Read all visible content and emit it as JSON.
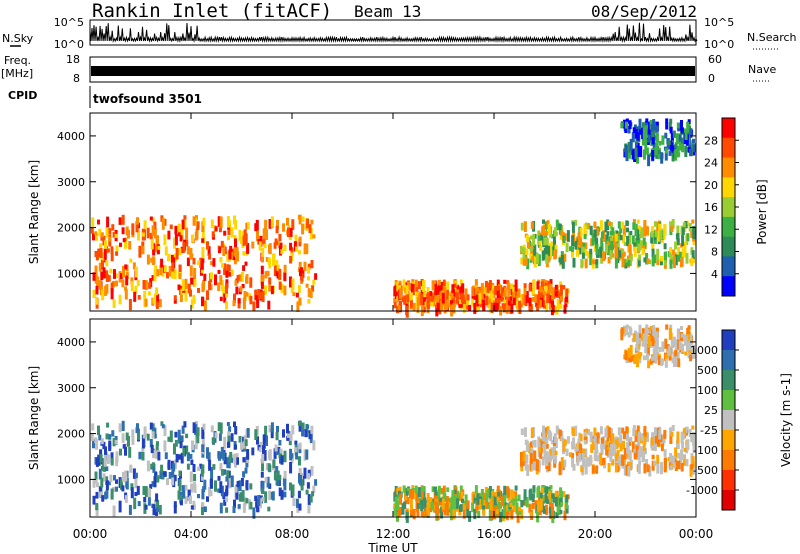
{
  "header": {
    "station": "Rankin Inlet (fitACF)",
    "beam": "Beam 13",
    "date": "08/Sep/2012"
  },
  "strip": {
    "nsky_label": "N.Sky",
    "nsky_ticks": [
      "10^5",
      "10^0"
    ],
    "nsearch_label": "N.Search",
    "nsearch_ticks": [
      "10^5",
      "10^0"
    ],
    "freq_label": "Freq.",
    "freq_unit": "[MHz]",
    "freq_ticks": [
      "18",
      "8"
    ],
    "nave_label": "Nave",
    "nave_ticks": [
      "60",
      "0"
    ],
    "cpid_label": "CPID",
    "cpid_value": "twofsound 3501"
  },
  "chart_data": [
    {
      "type": "heatmap",
      "panel": "power",
      "ylabel": "Slant Range [km]",
      "ylim": [
        180,
        4500
      ],
      "yticks": [
        "1000",
        "2000",
        "3000",
        "4000"
      ],
      "colorbar_label": "Power [dB]",
      "colorbar_ticks": [
        "28",
        "24",
        "20",
        "16",
        "12",
        "8",
        "4"
      ],
      "colorbar_colors": [
        "#ff0000",
        "#ff4a00",
        "#ff8c00",
        "#ffd700",
        "#9acd32",
        "#3cb043",
        "#2e8b57",
        "#1e5fb0",
        "#0000ff"
      ],
      "echo_bands": [
        {
          "t_start": "00:00",
          "t_end": "09:00",
          "range_min": 300,
          "range_max": 2200,
          "level": "high"
        },
        {
          "t_start": "12:00",
          "t_end": "19:00",
          "range_min": 200,
          "range_max": 800,
          "level": "high"
        },
        {
          "t_start": "17:00",
          "t_end": "24:00",
          "range_min": 1200,
          "range_max": 2100,
          "level": "medium"
        },
        {
          "t_start": "21:00",
          "t_end": "24:00",
          "range_min": 3500,
          "range_max": 4300,
          "level": "low"
        }
      ]
    },
    {
      "type": "heatmap",
      "panel": "velocity",
      "ylabel": "Slant Range [km]",
      "ylim": [
        180,
        4500
      ],
      "yticks": [
        "1000",
        "2000",
        "3000",
        "4000"
      ],
      "colorbar_label": "Velocity [m s-1]",
      "colorbar_ticks": [
        "1000",
        "500",
        "100",
        "25",
        "-25",
        "-100",
        "-500",
        "-1000"
      ],
      "colorbar_colors": [
        "#1f3fbf",
        "#2e6fb0",
        "#3a8f6a",
        "#5fbf3f",
        "#c0c0c0",
        "#ffa500",
        "#ff7a00",
        "#ff3000",
        "#e00000"
      ],
      "xlabel": "Time UT",
      "xticks": [
        "00:00",
        "04:00",
        "08:00",
        "12:00",
        "16:00",
        "20:00",
        "00:00"
      ]
    }
  ],
  "palette": {
    "frame": "#000000",
    "ground_scatter": "#c0c0c0",
    "strip_fill": "#000000"
  }
}
